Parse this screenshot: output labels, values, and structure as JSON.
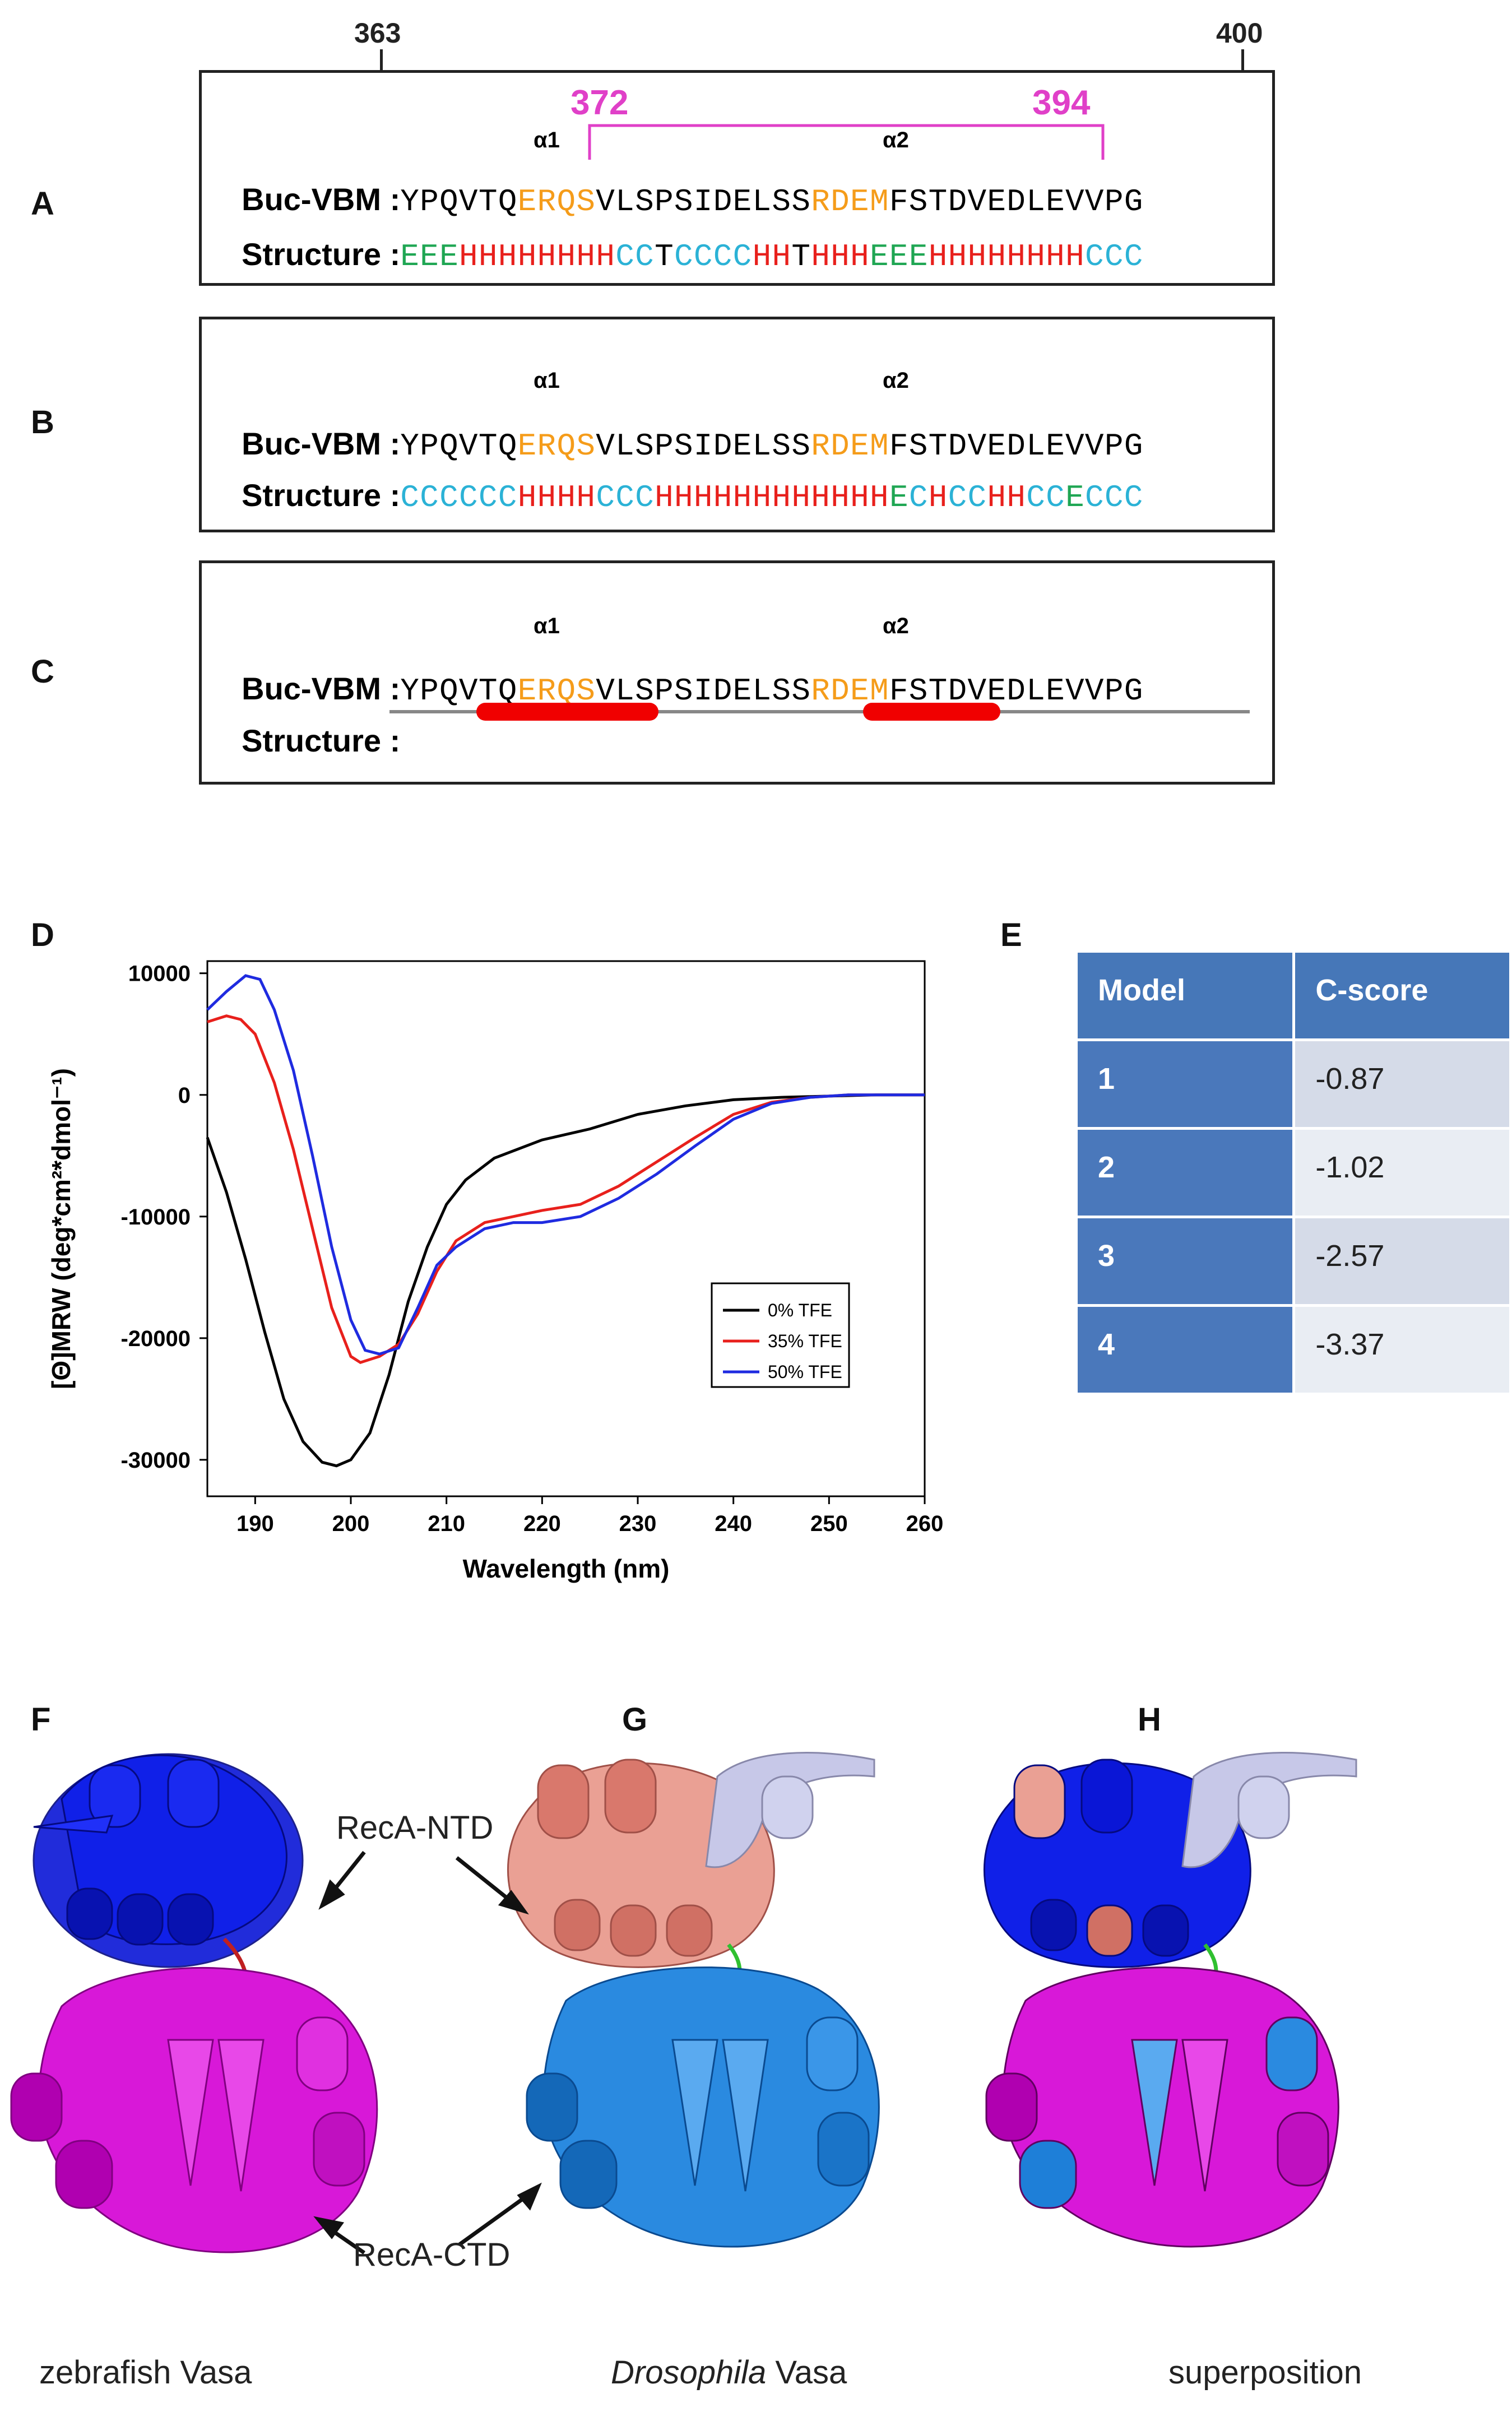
{
  "panels": {
    "A": "A",
    "B": "B",
    "C": "C",
    "D": "D",
    "E": "E",
    "F": "F",
    "G": "G",
    "H": "H"
  },
  "positions": {
    "start": "363",
    "end": "400",
    "bracket_start": "372",
    "bracket_end": "394"
  },
  "sequence": {
    "label": "Buc-VBM :",
    "prefix": "YPQVTQ",
    "motif1": "ERQS",
    "middle": "VLSPSIDELSS",
    "motif2": "RDEM",
    "suffix": "FSTDVEDLEVVPG",
    "alpha1": "α1",
    "alpha2": "α2"
  },
  "structure_label": "Structure :",
  "structureA": [
    {
      "t": "EEE",
      "c": "E"
    },
    {
      "t": "HHHHHHHH",
      "c": "H"
    },
    {
      "t": "CC",
      "c": "C"
    },
    {
      "t": "T",
      "c": "T"
    },
    {
      "t": "CCCC",
      "c": "C"
    },
    {
      "t": "HH",
      "c": "H"
    },
    {
      "t": "T",
      "c": "T"
    },
    {
      "t": "HHH",
      "c": "H"
    },
    {
      "t": "EEE",
      "c": "E"
    },
    {
      "t": "HHHHHHHH",
      "c": "H"
    },
    {
      "t": "CCC",
      "c": "C"
    }
  ],
  "structureB": [
    {
      "t": "CCCCCC",
      "c": "C"
    },
    {
      "t": "HHHH",
      "c": "H"
    },
    {
      "t": "CCC",
      "c": "C"
    },
    {
      "t": "HHHHHHHHHHHH",
      "c": "H"
    },
    {
      "t": "E",
      "c": "E"
    },
    {
      "t": "C",
      "c": "C"
    },
    {
      "t": "H",
      "c": "H"
    },
    {
      "t": "CC",
      "c": "C"
    },
    {
      "t": "HH",
      "c": "H"
    },
    {
      "t": "CC",
      "c": "C"
    },
    {
      "t": "E",
      "c": "E"
    },
    {
      "t": "CCC",
      "c": "C"
    }
  ],
  "colors": {
    "helix": "#e8201c",
    "coil": "#2bb2d6",
    "strand": "#1fa653",
    "motif": "#f59c1a",
    "bracket": "#e040c8"
  },
  "chart_data": {
    "type": "line",
    "xlabel": "Wavelength (nm)",
    "ylabel": "[Θ]MRW (deg*cm²*dmol⁻¹)",
    "xlim": [
      185,
      260
    ],
    "ylim": [
      -33000,
      11000
    ],
    "xticks": [
      190,
      200,
      210,
      220,
      230,
      240,
      250,
      260
    ],
    "yticks": [
      10000,
      0,
      -10000,
      -20000,
      -30000
    ],
    "legend_position": "right",
    "series": [
      {
        "name": "0% TFE",
        "color": "#000000",
        "x": [
          185,
          187,
          189,
          191,
          193,
          195,
          197,
          198.5,
          200,
          202,
          204,
          206,
          208,
          210,
          212,
          215,
          220,
          225,
          230,
          235,
          240,
          245,
          250,
          255,
          260
        ],
        "y": [
          -3500,
          -8000,
          -13500,
          -19500,
          -25000,
          -28500,
          -30200,
          -30500,
          -30000,
          -27800,
          -23000,
          -17000,
          -12500,
          -9000,
          -7000,
          -5200,
          -3700,
          -2800,
          -1600,
          -900,
          -400,
          -200,
          -100,
          0,
          0
        ]
      },
      {
        "name": "35% TFE",
        "color": "#e8201c",
        "x": [
          185,
          187,
          188.5,
          190,
          192,
          194,
          196,
          198,
          200,
          201,
          203,
          205,
          207,
          209,
          211,
          214,
          217,
          220,
          224,
          228,
          232,
          236,
          240,
          244,
          248,
          252,
          256,
          260
        ],
        "y": [
          6000,
          6500,
          6200,
          5000,
          1000,
          -4500,
          -11000,
          -17500,
          -21500,
          -22000,
          -21500,
          -20500,
          -18000,
          -14500,
          -12000,
          -10500,
          -10000,
          -9500,
          -9000,
          -7500,
          -5500,
          -3500,
          -1600,
          -600,
          -200,
          0,
          0,
          0
        ]
      },
      {
        "name": "50% TFE",
        "color": "#1f2be0",
        "x": [
          185,
          187,
          189,
          190.5,
          192,
          194,
          196,
          198,
          200,
          201.5,
          203,
          205,
          207,
          209,
          211,
          214,
          217,
          220,
          224,
          228,
          232,
          236,
          240,
          244,
          248,
          252,
          256,
          260
        ],
        "y": [
          7000,
          8500,
          9800,
          9500,
          7000,
          2000,
          -5000,
          -12500,
          -18500,
          -21000,
          -21300,
          -20800,
          -17500,
          -14000,
          -12500,
          -11000,
          -10500,
          -10500,
          -10000,
          -8500,
          -6500,
          -4200,
          -2000,
          -700,
          -200,
          0,
          0,
          0
        ]
      }
    ]
  },
  "table": {
    "headers": [
      "Model",
      "C-score"
    ],
    "rows": [
      [
        "1",
        "-0.87"
      ],
      [
        "2",
        "-1.02"
      ],
      [
        "3",
        "-2.57"
      ],
      [
        "4",
        "-3.37"
      ]
    ]
  },
  "annotations": {
    "ntd": "RecA-NTD",
    "ctd": "RecA-CTD"
  },
  "captions": {
    "f": "zebrafish Vasa",
    "g_italic": "Drosophila",
    "g_rest": " Vasa",
    "h": "superposition"
  },
  "legend_title": ""
}
